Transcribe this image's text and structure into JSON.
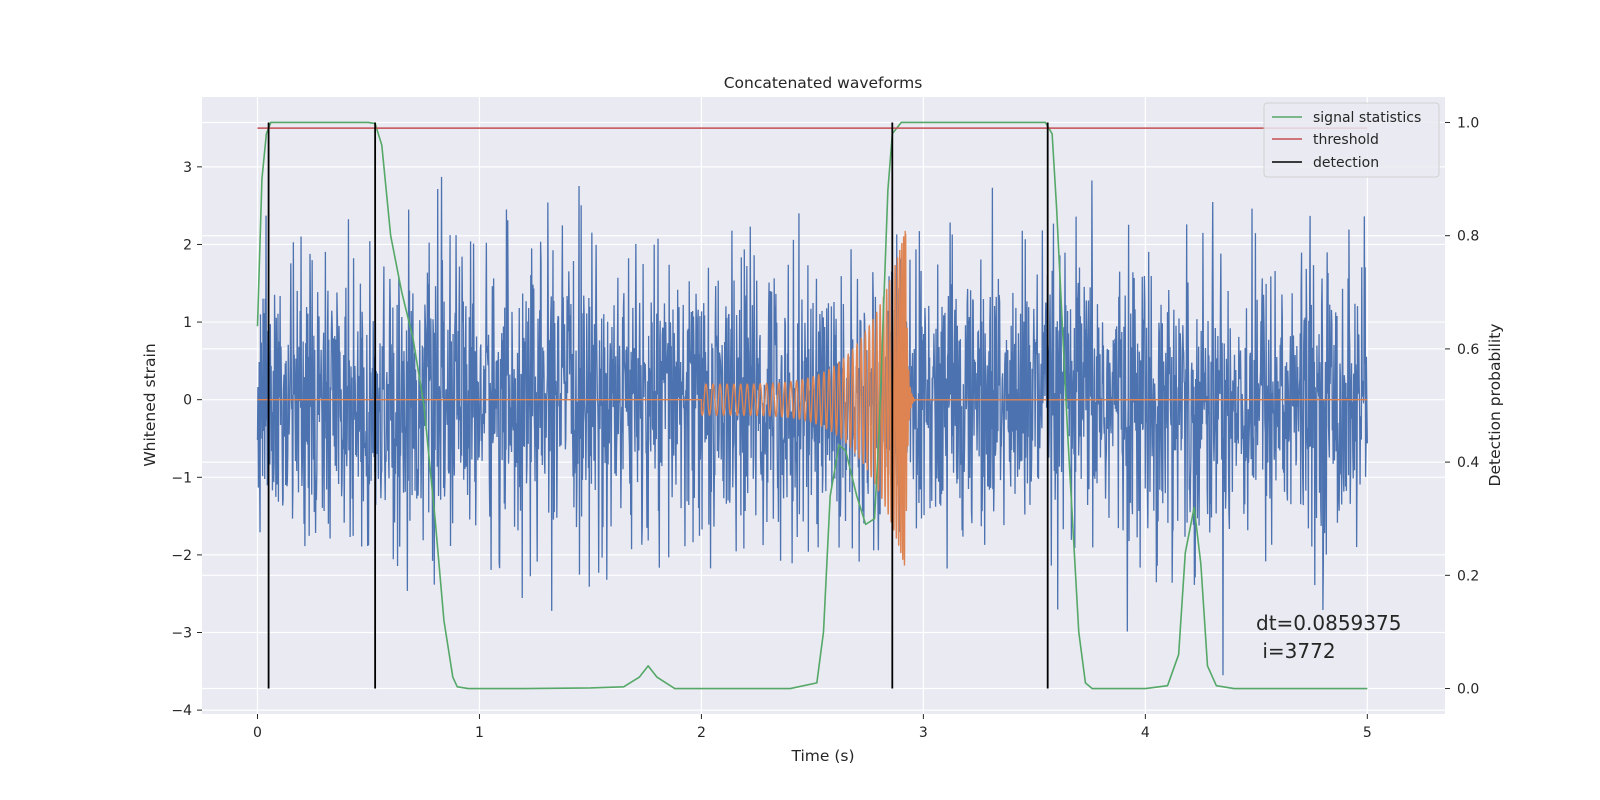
{
  "chart_data": {
    "type": "line",
    "title": "Concatenated waveforms",
    "xlabel": "Time (s)",
    "ylabel": "Whitened strain",
    "y2label": "Detection probability",
    "xlim": [
      -0.25,
      5.35
    ],
    "ylim": [
      -4.05,
      3.9
    ],
    "y2lim": [
      -0.045,
      1.045
    ],
    "xticks": [
      0,
      1,
      2,
      3,
      4,
      5
    ],
    "yticks": [
      -4,
      -3,
      -2,
      -1,
      0,
      1,
      2,
      3
    ],
    "y2ticks": [
      0.0,
      0.2,
      0.4,
      0.6,
      0.8,
      1.0
    ],
    "y2ticklabels": [
      "0.0",
      "0.2",
      "0.4",
      "0.6",
      "0.8",
      "1.0"
    ],
    "grid": true,
    "legend_position": "top-right",
    "colors": {
      "background": "#eaeaf2",
      "grid": "#ffffff",
      "noise": "#4c72b0",
      "chirp": "#dd8452",
      "statistic": "#55a868",
      "threshold": "#c44e52",
      "detection": "#000000"
    },
    "series": [
      {
        "name": "signal statistics",
        "axis": "right",
        "x": [
          0,
          0.02,
          0.04,
          0.06,
          0.08,
          0.12,
          0.2,
          0.3,
          0.4,
          0.45,
          0.5,
          0.53,
          0.56,
          0.6,
          0.65,
          0.7,
          0.75,
          0.8,
          0.84,
          0.88,
          0.9,
          0.95,
          1.2,
          1.5,
          1.65,
          1.72,
          1.76,
          1.8,
          1.88,
          2.1,
          2.4,
          2.52,
          2.55,
          2.58,
          2.62,
          2.65,
          2.7,
          2.74,
          2.78,
          2.8,
          2.84,
          2.86,
          2.9,
          3.0,
          3.2,
          3.4,
          3.55,
          3.58,
          3.6,
          3.65,
          3.7,
          3.73,
          3.76,
          3.8,
          4.0,
          4.1,
          4.15,
          4.18,
          4.22,
          4.25,
          4.28,
          4.32,
          4.4,
          4.8,
          5.0
        ],
        "values": [
          0.64,
          0.9,
          0.98,
          1.0,
          1.0,
          1.0,
          1.0,
          1.0,
          1.0,
          1.0,
          1.0,
          0.998,
          0.96,
          0.8,
          0.7,
          0.62,
          0.5,
          0.3,
          0.12,
          0.02,
          0.003,
          0.0,
          0.0,
          0.001,
          0.003,
          0.02,
          0.04,
          0.02,
          0.0,
          0.0,
          0.0,
          0.01,
          0.1,
          0.34,
          0.43,
          0.42,
          0.34,
          0.29,
          0.3,
          0.45,
          0.88,
          0.98,
          1.0,
          1.0,
          1.0,
          1.0,
          1.0,
          0.98,
          0.85,
          0.45,
          0.1,
          0.01,
          0.0,
          0.0,
          0.0,
          0.005,
          0.06,
          0.24,
          0.32,
          0.22,
          0.04,
          0.005,
          0.0,
          0.0,
          0.0
        ]
      },
      {
        "name": "threshold",
        "axis": "right",
        "x": [
          0,
          5
        ],
        "values": [
          0.99,
          0.99
        ]
      },
      {
        "name": "detection",
        "axis": "right",
        "x": [
          0.05,
          0.53,
          2.86,
          3.56
        ],
        "vlines": true,
        "ymin": 0.0,
        "ymax": 1.0
      }
    ],
    "noise": {
      "x_range": [
        0,
        5
      ],
      "amplitude_rms": 0.9,
      "ymin": -3.55,
      "ymax": 3.55
    },
    "chirp": {
      "x_start": 2.0,
      "x_merger": 2.92,
      "x_end": 2.96,
      "amp_start": 0.2,
      "amp_peak": 2.2
    },
    "annotation": {
      "line1": "dt=0.0859375",
      "line2": " i=3772"
    }
  }
}
